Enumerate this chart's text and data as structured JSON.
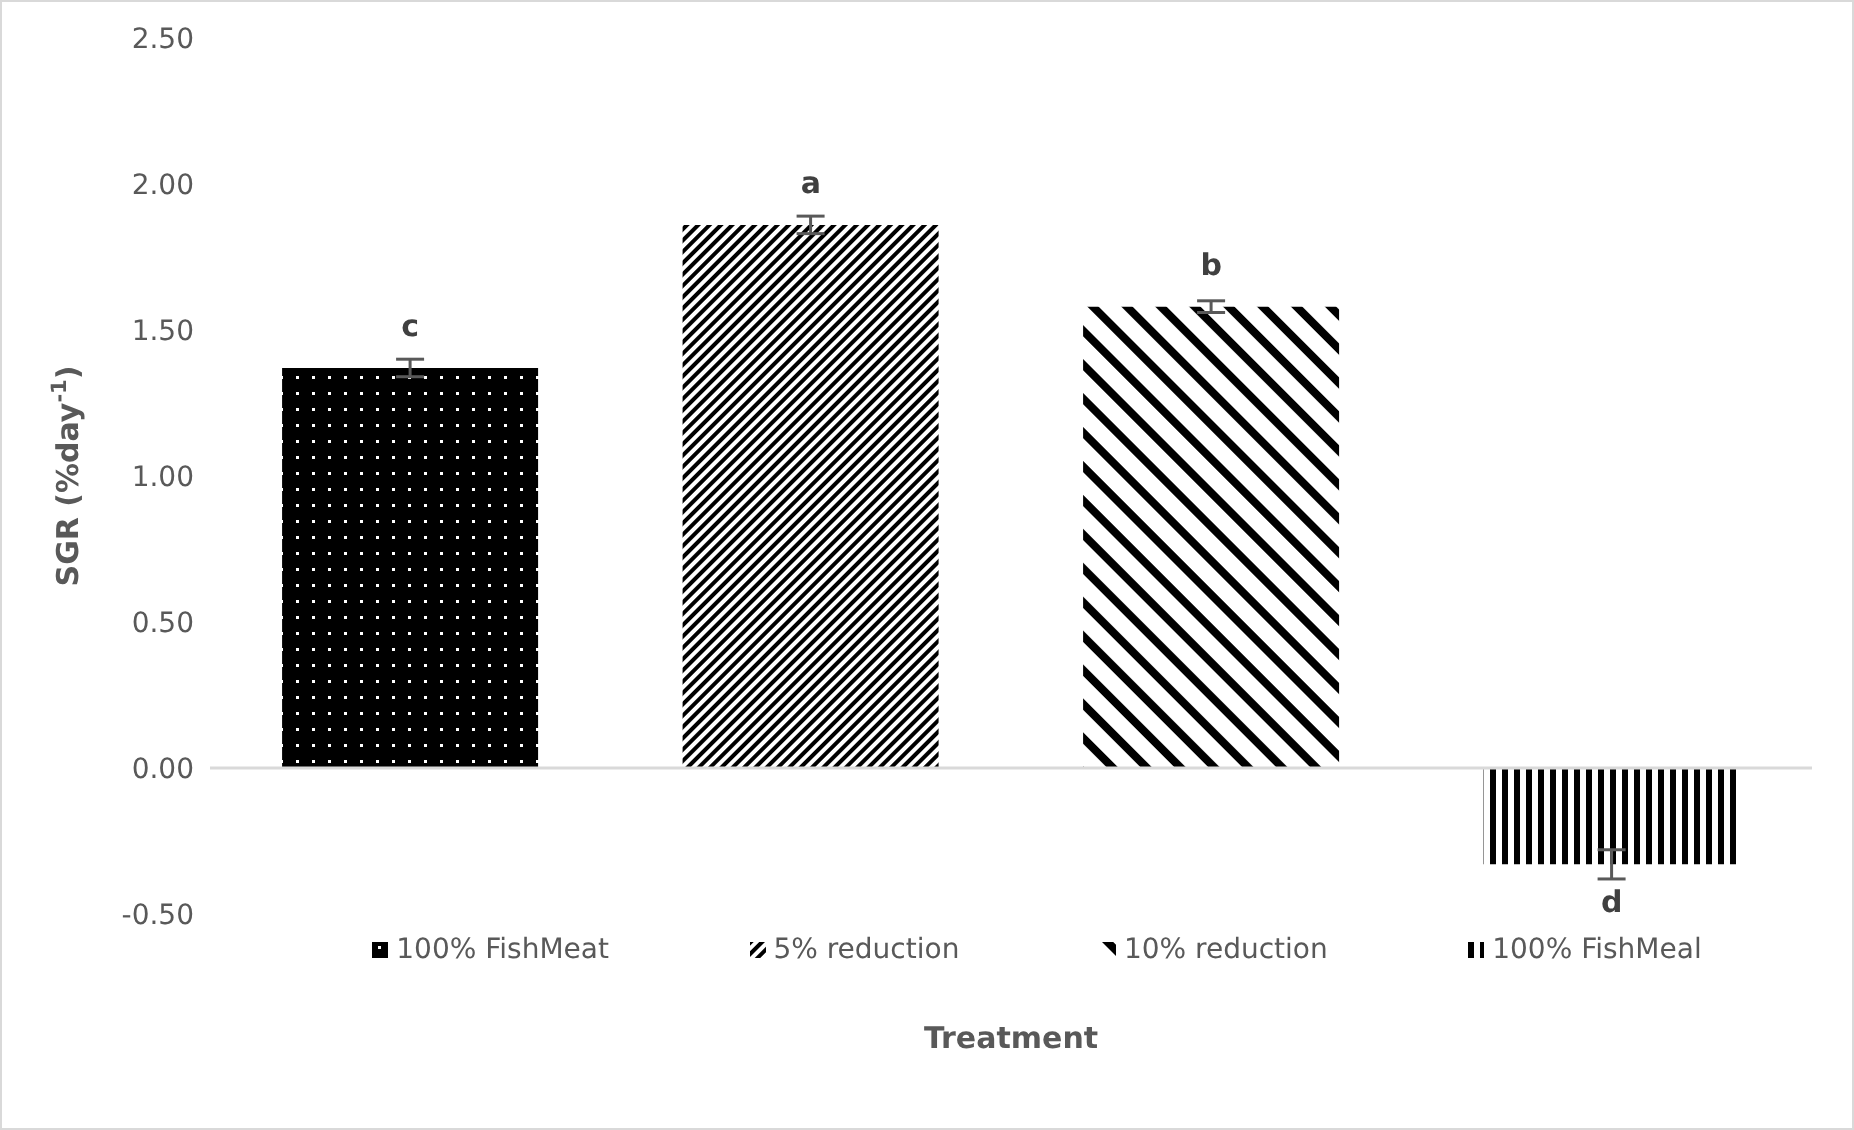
{
  "chart_data": {
    "type": "bar",
    "xlabel": "Treatment",
    "ylabel": "SGR (%day$^{-1}$)",
    "categories": [
      null,
      null,
      null,
      null
    ],
    "series": [
      {
        "name": "100% FishMeat",
        "color": "#000000",
        "values": [
          1.37,
          null,
          null,
          null
        ],
        "errors": [
          0.03,
          null,
          null,
          null
        ]
      },
      {
        "name": "5% reduction",
        "color": "#000000",
        "values": [
          null,
          1.86,
          null,
          null
        ],
        "errors": [
          null,
          0.03,
          null,
          null
        ]
      },
      {
        "name": "10% reduction",
        "color": "#000000",
        "values": [
          null,
          null,
          1.58,
          null
        ],
        "errors": [
          null,
          null,
          0.02,
          null
        ]
      },
      {
        "name": "100% FishMeal",
        "color": "#000000",
        "values": [
          null,
          null,
          null,
          -0.33
        ],
        "errors": [
          null,
          null,
          null,
          0.05
        ]
      }
    ],
    "ylim": [
      -0.5,
      2.5
    ],
    "yticks": [
      {
        "value": -0.5,
        "label": "-0.50"
      },
      {
        "value": 0,
        "label": "0.00"
      },
      {
        "value": 0.5,
        "label": "0.50"
      },
      {
        "value": 1,
        "label": "1.00"
      },
      {
        "value": 1.5,
        "label": "1.50"
      },
      {
        "value": 2,
        "label": "2.00"
      },
      {
        "value": 2.5,
        "label": "2.50"
      }
    ],
    "annotations": [
      {
        "text": "c",
        "y": 1.37
      },
      {
        "text": "a",
        "y": 1.86
      },
      {
        "text": "b",
        "y": 1.58
      },
      {
        "text": "d",
        "y": -0.33
      }
    ],
    "ref_lines": [
      {
        "axis": "y",
        "value": 0,
        "color": "#d9d9d9"
      }
    ],
    "grid": false,
    "legend": "bottom"
  }
}
